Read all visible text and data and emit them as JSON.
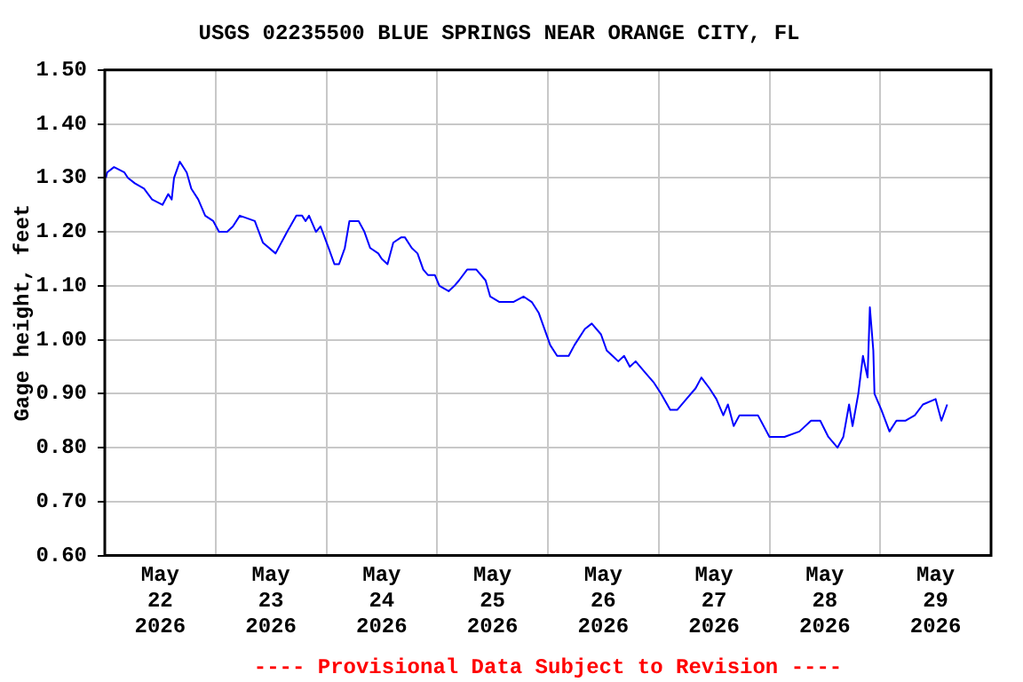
{
  "chart_data": {
    "type": "line",
    "title": "USGS 02235500 BLUE SPRINGS NEAR ORANGE CITY, FL",
    "ylabel": "Gage height, feet",
    "annotations": [
      "---- Provisional Data Subject to Revision ----"
    ],
    "xlim": [
      "2026-05-22T00:00",
      "2026-05-30T00:00"
    ],
    "xticks": [
      {
        "value": "2026-05-22T00:00",
        "label": null
      },
      {
        "value": "2026-05-22T12:00",
        "label": "May 22 2026"
      },
      {
        "value": "2026-05-23T00:00",
        "label": null
      },
      {
        "value": "2026-05-23T12:00",
        "label": "May 23 2026"
      },
      {
        "value": "2026-05-24T00:00",
        "label": null
      },
      {
        "value": "2026-05-24T12:00",
        "label": "May 24 2026"
      },
      {
        "value": "2026-05-25T00:00",
        "label": null
      },
      {
        "value": "2026-05-25T12:00",
        "label": "May 25 2026"
      },
      {
        "value": "2026-05-26T00:00",
        "label": null
      },
      {
        "value": "2026-05-26T12:00",
        "label": "May 26 2026"
      },
      {
        "value": "2026-05-27T00:00",
        "label": null
      },
      {
        "value": "2026-05-27T12:00",
        "label": "May 27 2026"
      },
      {
        "value": "2026-05-28T00:00",
        "label": null
      },
      {
        "value": "2026-05-28T12:00",
        "label": "May 28 2026"
      },
      {
        "value": "2026-05-29T00:00",
        "label": null
      },
      {
        "value": "2026-05-29T12:00",
        "label": "May 29 2026"
      },
      {
        "value": "2026-05-30T00:00",
        "label": null
      }
    ],
    "ylim": [
      0.6,
      1.5
    ],
    "yticks": [
      {
        "value": 0.6,
        "label": "0.60"
      },
      {
        "value": 0.7,
        "label": "0.70"
      },
      {
        "value": 0.8,
        "label": "0.80"
      },
      {
        "value": 0.9,
        "label": "0.90"
      },
      {
        "value": 1.0,
        "label": "1.00"
      },
      {
        "value": 1.1,
        "label": "1.10"
      },
      {
        "value": 1.2,
        "label": "1.20"
      },
      {
        "value": 1.3,
        "label": "1.30"
      },
      {
        "value": 1.4,
        "label": "1.40"
      },
      {
        "value": 1.5,
        "label": "1.50"
      }
    ],
    "grid": true,
    "legend": false,
    "marker": "none",
    "line_style": "solid",
    "x": [
      "2026-05-22T00:15",
      "2026-05-22T00:30",
      "2026-05-22T02:00",
      "2026-05-22T04:15",
      "2026-05-22T05:00",
      "2026-05-22T06:30",
      "2026-05-22T08:30",
      "2026-05-22T10:15",
      "2026-05-22T12:30",
      "2026-05-22T13:45",
      "2026-05-22T14:30",
      "2026-05-22T15:00",
      "2026-05-22T16:15",
      "2026-05-22T17:45",
      "2026-05-22T18:45",
      "2026-05-22T20:15",
      "2026-05-22T21:45",
      "2026-05-22T23:30",
      "2026-05-23T00:45",
      "2026-05-23T02:30",
      "2026-05-23T03:45",
      "2026-05-23T05:15",
      "2026-05-23T08:30",
      "2026-05-23T10:15",
      "2026-05-23T13:00",
      "2026-05-23T15:30",
      "2026-05-23T17:30",
      "2026-05-23T18:45",
      "2026-05-23T19:30",
      "2026-05-23T20:15",
      "2026-05-23T21:45",
      "2026-05-23T22:45",
      "2026-05-24T00:30",
      "2026-05-24T01:45",
      "2026-05-24T02:45",
      "2026-05-24T04:00",
      "2026-05-24T05:00",
      "2026-05-24T07:00",
      "2026-05-24T08:15",
      "2026-05-24T09:30",
      "2026-05-24T11:15",
      "2026-05-24T12:00",
      "2026-05-24T13:15",
      "2026-05-24T14:30",
      "2026-05-24T16:15",
      "2026-05-24T17:00",
      "2026-05-24T18:30",
      "2026-05-24T19:45",
      "2026-05-24T21:00",
      "2026-05-24T22:00",
      "2026-05-24T23:30",
      "2026-05-25T00:30",
      "2026-05-25T02:30",
      "2026-05-25T03:45",
      "2026-05-25T04:45",
      "2026-05-25T06:30",
      "2026-05-25T08:30",
      "2026-05-25T10:30",
      "2026-05-25T11:30",
      "2026-05-25T13:30",
      "2026-05-25T14:15",
      "2026-05-25T16:30",
      "2026-05-25T18:45",
      "2026-05-25T20:30",
      "2026-05-25T22:00",
      "2026-05-25T23:15",
      "2026-05-26T00:30",
      "2026-05-26T02:00",
      "2026-05-26T04:30",
      "2026-05-26T05:45",
      "2026-05-26T08:00",
      "2026-05-26T09:30",
      "2026-05-26T11:30",
      "2026-05-26T12:45",
      "2026-05-26T14:00",
      "2026-05-26T15:15",
      "2026-05-26T16:30",
      "2026-05-26T17:45",
      "2026-05-26T19:00",
      "2026-05-26T21:00",
      "2026-05-26T23:00",
      "2026-05-27T00:30",
      "2026-05-27T02:30",
      "2026-05-27T04:00",
      "2026-05-27T06:00",
      "2026-05-27T08:00",
      "2026-05-27T09:15",
      "2026-05-27T11:00",
      "2026-05-27T12:30",
      "2026-05-27T14:00",
      "2026-05-27T15:00",
      "2026-05-27T16:15",
      "2026-05-27T17:30",
      "2026-05-27T19:30",
      "2026-05-27T21:30",
      "2026-05-28T00:00",
      "2026-05-28T03:15",
      "2026-05-28T06:30",
      "2026-05-28T09:00",
      "2026-05-28T11:00",
      "2026-05-28T12:45",
      "2026-05-28T14:45",
      "2026-05-28T16:00",
      "2026-05-28T17:15",
      "2026-05-28T18:00",
      "2026-05-28T19:15",
      "2026-05-28T20:15",
      "2026-05-28T21:15",
      "2026-05-28T21:45",
      "2026-05-28T22:30",
      "2026-05-28T22:45",
      "2026-05-29T00:15",
      "2026-05-29T02:00",
      "2026-05-29T03:30",
      "2026-05-29T05:30",
      "2026-05-29T07:30",
      "2026-05-29T09:15",
      "2026-05-29T12:00",
      "2026-05-29T13:15",
      "2026-05-29T14:30"
    ],
    "series": [
      {
        "color": "#0000ff",
        "values": [
          1.3,
          1.31,
          1.32,
          1.31,
          1.3,
          1.29,
          1.28,
          1.26,
          1.25,
          1.27,
          1.26,
          1.3,
          1.33,
          1.31,
          1.28,
          1.26,
          1.23,
          1.22,
          1.2,
          1.2,
          1.21,
          1.23,
          1.22,
          1.18,
          1.16,
          1.2,
          1.23,
          1.23,
          1.22,
          1.23,
          1.2,
          1.21,
          1.17,
          1.14,
          1.14,
          1.17,
          1.22,
          1.22,
          1.2,
          1.17,
          1.16,
          1.15,
          1.14,
          1.18,
          1.19,
          1.19,
          1.17,
          1.16,
          1.13,
          1.12,
          1.12,
          1.1,
          1.09,
          1.1,
          1.11,
          1.13,
          1.13,
          1.11,
          1.08,
          1.07,
          1.07,
          1.07,
          1.08,
          1.07,
          1.05,
          1.02,
          0.99,
          0.97,
          0.97,
          0.99,
          1.02,
          1.03,
          1.01,
          0.98,
          0.97,
          0.96,
          0.97,
          0.95,
          0.96,
          0.94,
          0.92,
          0.9,
          0.87,
          0.87,
          0.89,
          0.91,
          0.93,
          0.91,
          0.89,
          0.86,
          0.88,
          0.84,
          0.86,
          0.86,
          0.86,
          0.82,
          0.82,
          0.83,
          0.85,
          0.85,
          0.82,
          0.8,
          0.82,
          0.88,
          0.84,
          0.9,
          0.97,
          0.93,
          1.06,
          0.98,
          0.9,
          0.87,
          0.83,
          0.85,
          0.85,
          0.86,
          0.88,
          0.89,
          0.85,
          0.88
        ]
      }
    ]
  }
}
